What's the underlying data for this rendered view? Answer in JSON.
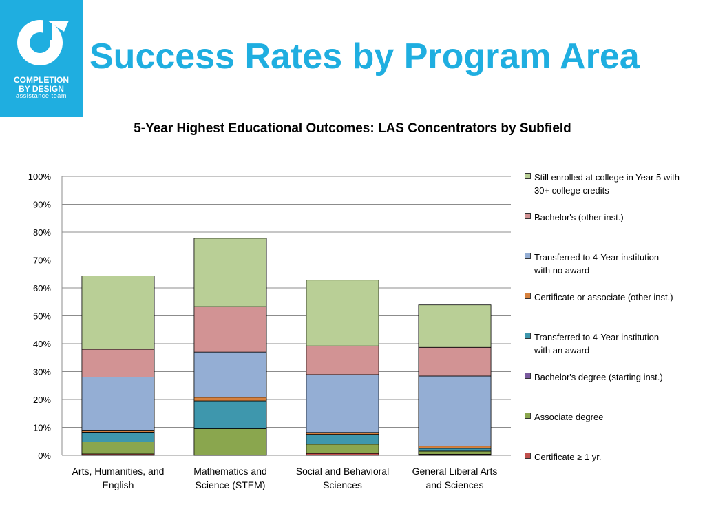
{
  "header": {
    "title": "Success Rates by Program Area",
    "logo": {
      "line1": "COMPLETION",
      "line2": "BY DESIGN",
      "line3": "assistance team",
      "color": "#1faee0"
    }
  },
  "chart_data": {
    "type": "bar",
    "stacked": true,
    "title": "5-Year Highest Educational Outcomes: LAS Concentrators by Subfield",
    "xlabel": "",
    "ylabel": "",
    "ylim": [
      0,
      100
    ],
    "yticks": [
      "0%",
      "10%",
      "20%",
      "30%",
      "40%",
      "50%",
      "60%",
      "70%",
      "80%",
      "90%",
      "100%"
    ],
    "grid": true,
    "legend_position": "right",
    "categories": [
      [
        "Arts, Humanities, and",
        "English"
      ],
      [
        "Mathematics and",
        "Science (STEM)"
      ],
      [
        "Social and Behavioral",
        "Sciences"
      ],
      [
        "General Liberal Arts",
        "and Sciences"
      ]
    ],
    "series": [
      {
        "name": "Certificate ≥ 1 yr.",
        "color": "#c0504d",
        "values": [
          0.5,
          0.0,
          0.7,
          0.4
        ]
      },
      {
        "name": "Associate degree",
        "color": "#8aa64e",
        "values": [
          4.3,
          9.5,
          3.3,
          1.1
        ]
      },
      {
        "name": "Bachelor's degree (starting inst.)",
        "color": "#7a5a9e",
        "values": [
          0.0,
          0.0,
          0.0,
          0.0
        ]
      },
      {
        "name": "Transferred to 4-Year institution with an award",
        "color": "#3e97ad",
        "values": [
          3.5,
          10.0,
          3.5,
          1.0
        ]
      },
      {
        "name": "Certificate or associate (other inst.)",
        "color": "#d6813e",
        "values": [
          0.7,
          1.3,
          0.7,
          0.8
        ]
      },
      {
        "name": "Transferred to 4-Year institution with no award",
        "color": "#94aed4",
        "values": [
          19.0,
          16.2,
          20.7,
          25.1
        ]
      },
      {
        "name": "Bachelor's (other inst.)",
        "color": "#d29394",
        "values": [
          10.0,
          16.3,
          10.3,
          10.3
        ]
      },
      {
        "name": "Still enrolled at college in Year 5 with 30+ college credits",
        "color": "#b9cf96",
        "values": [
          26.3,
          24.5,
          23.6,
          15.2
        ]
      }
    ],
    "legend": [
      {
        "lines": [
          "Still enrolled at college in Year 5 with",
          "30+ college credits"
        ],
        "color": "#b9cf96"
      },
      {
        "lines": [
          "Bachelor's (other inst.)"
        ],
        "color": "#d29394"
      },
      {
        "lines": [
          "Transferred to 4-Year institution",
          "with no award"
        ],
        "color": "#94aed4"
      },
      {
        "lines": [
          "Certificate or associate (other inst.)"
        ],
        "color": "#d6813e"
      },
      {
        "lines": [
          "Transferred to 4-Year institution",
          "with an award"
        ],
        "color": "#3e97ad"
      },
      {
        "lines": [
          "Bachelor's degree (starting inst.)"
        ],
        "color": "#7a5a9e"
      },
      {
        "lines": [
          "Associate degree"
        ],
        "color": "#8aa64e"
      },
      {
        "lines": [
          "Certificate ≥ 1 yr."
        ],
        "color": "#c0504d"
      }
    ]
  }
}
